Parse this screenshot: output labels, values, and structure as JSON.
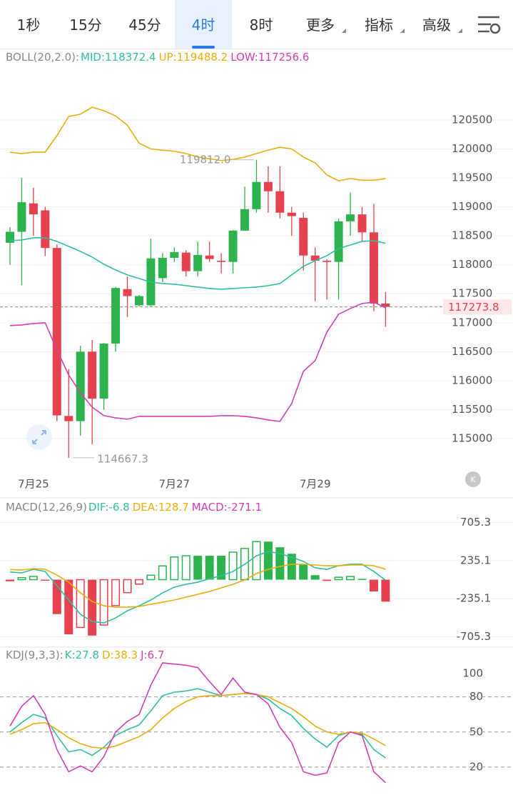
{
  "tabs": [
    "1秒",
    "15分",
    "45分",
    "4时",
    "8时",
    "更多",
    "指标",
    "高级"
  ],
  "active_tab": 3,
  "dropdown_tabs": [
    5,
    6,
    7
  ],
  "chart_data": [
    {
      "type": "candlestick",
      "indicator": "BOLL(20,2.0):",
      "categories": [
        null,
        null,
        "7月25",
        null,
        null,
        null,
        null,
        null,
        null,
        null,
        null,
        null,
        null,
        null,
        "7月27",
        null,
        null,
        null,
        null,
        null,
        null,
        null,
        null,
        null,
        null,
        null,
        "7月29",
        null,
        null,
        null,
        null,
        null,
        null
      ],
      "open": [
        118380,
        118570,
        119060,
        118940,
        118290,
        115390,
        115300,
        116500,
        115690,
        116640,
        117580,
        117300,
        117300,
        117770,
        118120,
        118210,
        117890,
        118160,
        118070,
        118050,
        118590,
        118960,
        119430,
        119270,
        118900,
        118810,
        118160,
        118070,
        118050,
        118750,
        118870,
        118560,
        117330
      ],
      "high": [
        118650,
        119500,
        119330,
        119000,
        118350,
        116200,
        116600,
        116700,
        116650,
        117620,
        117800,
        117480,
        118450,
        118200,
        118300,
        118250,
        118400,
        118400,
        118200,
        118600,
        119350,
        119812.0,
        119700,
        119700,
        119000,
        118900,
        118300,
        118100,
        118800,
        119250,
        119000,
        119050,
        117530
      ],
      "low": [
        118000,
        117650,
        118500,
        118150,
        115300,
        114667.3,
        115050,
        114900,
        115500,
        116500,
        117100,
        117280,
        117290,
        117700,
        118050,
        117800,
        117800,
        118050,
        117850,
        117850,
        118590,
        118900,
        118900,
        118800,
        118500,
        117900,
        117370,
        117400,
        117400,
        118500,
        118400,
        117200,
        116930
      ],
      "close": [
        118570,
        119080,
        118870,
        118290,
        115400,
        115300,
        116500,
        115690,
        116640,
        117600,
        117460,
        117460,
        118110,
        118120,
        118220,
        117890,
        118170,
        118100,
        118050,
        118590,
        118960,
        119430,
        119270,
        118900,
        118840,
        118160,
        118070,
        118050,
        118750,
        118870,
        118560,
        117330,
        117273.8
      ],
      "up_color": "#2db34e",
      "down_color": "#e5414e",
      "series": [
        {
          "name": "MID:118372.4",
          "color": "#2fbf9f",
          "values": [
            118416,
            118428,
            118466,
            118466,
            118404,
            118318,
            118231,
            118133,
            118010,
            117910,
            117825,
            117763,
            117701,
            117676,
            117664,
            117640,
            117615,
            117590,
            117578,
            117590,
            117603,
            117615,
            117640,
            117676,
            117825,
            117972,
            118071,
            118157,
            118281,
            118342,
            118404,
            118416,
            118372.4
          ]
        },
        {
          "name": "UP:119488.2",
          "color": "#e9ae0c",
          "values": [
            119945,
            119920,
            119945,
            119945,
            120230,
            120560,
            120600,
            120720,
            120660,
            120570,
            120410,
            120100,
            120000,
            119980,
            119960,
            119920,
            119860,
            119830,
            119800,
            119820,
            119860,
            119920,
            119980,
            120030,
            120000,
            119860,
            119760,
            119550,
            119450,
            119490,
            119460,
            119460,
            119488.2
          ]
        },
        {
          "name": "LOW:117256.6",
          "color": "#d33fb3",
          "values": [
            116950,
            116961,
            116986,
            116998,
            116530,
            116098,
            115790,
            115543,
            115395,
            115358,
            115334,
            115383,
            115383,
            115383,
            115383,
            115383,
            115383,
            115383,
            115395,
            115395,
            115383,
            115358,
            115321,
            115297,
            115605,
            116160,
            116345,
            116838,
            117146,
            117245,
            117331,
            117356,
            117256.6
          ]
        }
      ],
      "ylim": [
        114500,
        121400
      ],
      "yticks": [
        115000,
        115500,
        116000,
        116500,
        117000,
        117500,
        118000,
        118500,
        119000,
        119500,
        120000,
        120500
      ],
      "grid": true,
      "max_label": "119812.0",
      "min_label": "114667.3"
    },
    {
      "type": "macd",
      "indicator": "MACD(12,26,9)",
      "up_color": "#2db34e",
      "down_color": "#e5414e",
      "series": [
        {
          "name": "DIF:-6.8",
          "color": "#2fbf9f",
          "values": [
            95,
            84,
            128,
            101,
            -75,
            -251,
            -428,
            -516,
            -534,
            -472,
            -384,
            -322,
            -251,
            -163,
            -93,
            -57,
            -31,
            13,
            49,
            101,
            190,
            295,
            348,
            322,
            278,
            225,
            146,
            128,
            172,
            190,
            190,
            101,
            -6.8
          ]
        },
        {
          "name": "DEA:128.7",
          "color": "#e9ae0c",
          "values": [
            125,
            119,
            137,
            128,
            57,
            -31,
            -163,
            -269,
            -322,
            -340,
            -340,
            -331,
            -304,
            -278,
            -251,
            -216,
            -181,
            -146,
            -101,
            -57,
            -4,
            75,
            128,
            163,
            190,
            190,
            181,
            172,
            172,
            181,
            181,
            172,
            128.7
          ]
        },
        {
          "name": "MACD:-271.1",
          "color": "#d33fb3",
          "type": "bar",
          "values": [
            -20,
            25,
            40,
            -10,
            -425,
            -675,
            -590,
            -690,
            -560,
            -320,
            -160,
            -55,
            55,
            170,
            280,
            295,
            295,
            295,
            295,
            340,
            385,
            470,
            470,
            400,
            320,
            190,
            55,
            -15,
            30,
            40,
            10,
            -145,
            -271.1
          ]
        }
      ],
      "ylim": [
        -736,
        957
      ],
      "yticks": [
        -705.3,
        -235.1,
        235.1,
        705.3
      ],
      "grid": true
    },
    {
      "type": "line",
      "indicator": "KDJ(9,3,3):",
      "series": [
        {
          "name": "K:27.8",
          "color": "#2fbf9f",
          "values": [
            50,
            58,
            65,
            62,
            47,
            33,
            35,
            30,
            37,
            47,
            52,
            56,
            68,
            81,
            84,
            85,
            87,
            84,
            81,
            82,
            83,
            82,
            78,
            70,
            64,
            53,
            44,
            37,
            47,
            50,
            48,
            35,
            27.8
          ]
        },
        {
          "name": "D:38.3",
          "color": "#e9ae0c",
          "values": [
            48,
            52,
            57,
            58,
            52,
            45,
            40,
            37,
            36,
            38,
            42,
            46,
            52,
            62,
            70,
            76,
            80,
            81,
            81,
            82,
            83,
            82,
            80,
            75,
            70,
            63,
            55,
            50,
            48,
            50,
            49,
            44,
            38.3
          ]
        },
        {
          "name": "J:6.7",
          "color": "#d33fb3",
          "values": [
            55,
            72,
            81,
            65,
            35,
            16,
            21,
            16,
            29,
            50,
            59,
            65,
            90,
            109,
            108,
            107,
            105,
            93,
            82,
            96,
            84,
            82,
            74,
            54,
            41,
            16,
            13,
            15,
            41,
            50,
            47,
            16,
            6.7
          ]
        }
      ],
      "ylim": [
        -2,
        120
      ],
      "yticks": [
        20,
        50,
        80,
        100
      ],
      "levels": [
        20,
        50,
        80
      ],
      "grid": false
    }
  ]
}
